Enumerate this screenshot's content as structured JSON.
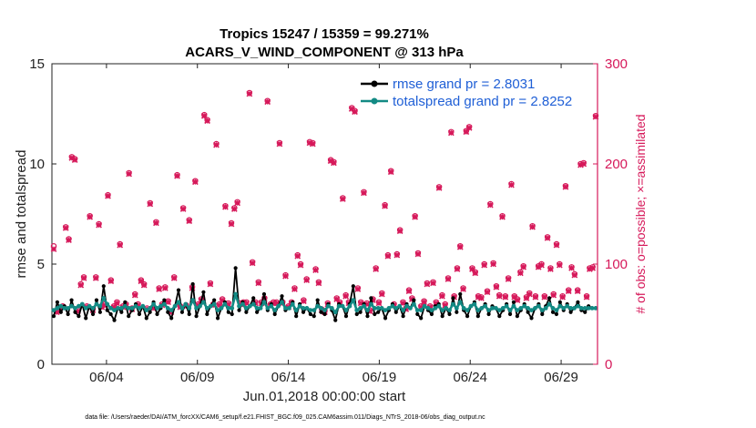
{
  "chart_data": {
    "type": "line",
    "title_line1": "Tropics 15247 / 15359 = 99.271%",
    "title_line2": "ACARS_V_WIND_COMPONENT @ 313 hPa",
    "xlabel": "Jun.01,2018 00:00:00 start",
    "ylabel_left": "rmse and totalspread",
    "ylabel_right": "# of obs: o=possible; ×=assimilated",
    "footer": "data file: /Users/raeder/DAI/ATM_forcXX/CAM6_setup/f.e21.FHIST_BGC.f09_025.CAM6assim.011/Diags_NTrS_2018-06/obs_diag_output.nc",
    "x_tick_labels": [
      "06/04",
      "06/09",
      "06/14",
      "06/19",
      "06/24",
      "06/29"
    ],
    "x_tick_days": [
      4,
      9,
      14,
      19,
      24,
      29
    ],
    "xlim_days": [
      1,
      31
    ],
    "ylim_left": [
      0,
      15
    ],
    "ylim_right": [
      0,
      300
    ],
    "y_ticks_left": [
      "0",
      "5",
      "10",
      "15"
    ],
    "y_ticks_right": [
      "0",
      "100",
      "200",
      "300"
    ],
    "colors": {
      "rmse": "#000000",
      "spread": "#138a84",
      "obs": "#d6195a",
      "legend_text": "#1f5fd6"
    },
    "series": [
      {
        "name": "rmse grand pr = 2.8031",
        "key": "rmse",
        "axis": "left",
        "values": [
          2.4,
          3.1,
          2.6,
          2.9,
          2.5,
          3.2,
          2.6,
          2.4,
          3.0,
          2.3,
          2.9,
          2.5,
          3.2,
          2.6,
          3.9,
          2.7,
          2.5,
          2.2,
          2.8,
          2.6,
          3.1,
          2.4,
          2.7,
          3.0,
          2.5,
          2.9,
          2.3,
          2.6,
          3.1,
          2.5,
          2.8,
          3.2,
          2.6,
          2.3,
          2.9,
          3.7,
          2.6,
          3.0,
          2.5,
          4.0,
          2.4,
          2.9,
          3.6,
          2.5,
          2.9,
          3.2,
          2.3,
          2.8,
          3.1,
          2.6,
          2.5,
          4.8,
          2.7,
          3.1,
          2.6,
          2.9,
          3.3,
          2.6,
          2.8,
          3.5,
          2.7,
          3.0,
          2.5,
          2.9,
          3.4,
          2.7,
          2.8,
          3.1,
          2.4,
          3.0,
          2.6,
          2.8,
          2.5,
          2.4,
          3.2,
          2.6,
          2.5,
          3.0,
          2.7,
          2.2,
          3.0,
          2.9,
          2.4,
          3.0,
          3.9,
          2.5,
          2.6,
          3.0,
          2.4,
          3.3,
          2.5,
          2.6,
          2.8,
          2.3,
          2.7,
          3.0,
          2.6,
          2.9,
          2.4,
          3.0,
          2.8,
          3.2,
          2.5,
          2.3,
          2.9,
          2.7,
          2.5,
          2.9,
          3.0,
          2.4,
          2.8,
          2.5,
          3.3,
          2.6,
          3.5,
          2.7,
          2.4,
          2.9,
          3.1,
          2.4,
          2.8,
          3.0,
          2.5,
          2.9,
          2.8,
          2.4,
          2.7,
          3.0,
          2.5,
          3.1,
          2.4,
          2.7,
          3.0,
          2.6,
          2.3,
          2.8,
          3.0,
          2.5,
          2.9,
          3.3,
          2.6,
          2.5,
          3.1,
          2.7,
          3.0,
          2.6,
          2.8,
          3.1,
          2.7,
          2.6,
          2.9,
          2.8,
          2.8
        ],
        "line": true,
        "marker": "dot"
      },
      {
        "name": "totalspread grand pr = 2.8252",
        "key": "spread",
        "axis": "left",
        "values": [
          2.7,
          2.8,
          2.9,
          2.8,
          2.8,
          2.9,
          2.8,
          2.9,
          3.0,
          2.8,
          2.9,
          2.8,
          3.0,
          2.9,
          3.3,
          3.0,
          2.8,
          2.7,
          2.8,
          2.8,
          2.9,
          2.8,
          2.8,
          2.9,
          2.8,
          2.9,
          2.7,
          2.8,
          3.0,
          2.8,
          2.9,
          3.0,
          2.8,
          2.7,
          2.9,
          3.1,
          2.8,
          3.0,
          2.8,
          3.2,
          2.8,
          2.9,
          3.1,
          2.8,
          2.9,
          3.0,
          2.7,
          2.8,
          3.0,
          2.8,
          2.8,
          3.5,
          2.9,
          3.0,
          2.8,
          2.9,
          3.0,
          2.8,
          2.8,
          3.1,
          2.8,
          2.9,
          2.7,
          2.9,
          3.1,
          2.8,
          2.8,
          3.0,
          2.7,
          2.9,
          2.8,
          2.8,
          2.7,
          2.7,
          2.9,
          2.8,
          2.7,
          2.9,
          2.8,
          2.6,
          2.9,
          2.9,
          2.7,
          2.9,
          3.2,
          2.7,
          2.8,
          2.9,
          2.7,
          3.0,
          2.8,
          2.8,
          2.8,
          2.7,
          2.8,
          2.9,
          2.8,
          2.9,
          2.7,
          2.9,
          2.8,
          3.0,
          2.7,
          2.7,
          2.9,
          2.8,
          2.7,
          2.8,
          2.9,
          2.7,
          2.8,
          2.7,
          3.0,
          2.8,
          3.1,
          2.8,
          2.7,
          2.9,
          3.0,
          2.7,
          2.8,
          2.9,
          2.7,
          2.8,
          2.8,
          2.7,
          2.8,
          2.9,
          2.7,
          2.9,
          2.7,
          2.8,
          2.9,
          2.8,
          2.7,
          2.8,
          2.9,
          2.7,
          2.8,
          3.0,
          2.8,
          2.7,
          2.9,
          2.8,
          2.9,
          2.8,
          2.8,
          2.9,
          2.8,
          2.8,
          2.8,
          2.8,
          2.8
        ],
        "line": true,
        "marker": "dot"
      },
      {
        "name": "# of obs possible",
        "key": "obs_possible",
        "axis": "right",
        "values": [
          118,
          53,
          55,
          58,
          137,
          125,
          207,
          205,
          54,
          80,
          87,
          58,
          148,
          55,
          87,
          140,
          58,
          60,
          169,
          84,
          58,
          62,
          120,
          58,
          60,
          191,
          56,
          70,
          60,
          84,
          80,
          56,
          161,
          57,
          142,
          76,
          60,
          77,
          63,
          53,
          87,
          189,
          58,
          156,
          59,
          144,
          77,
          183,
          60,
          65,
          249,
          244,
          81,
          60,
          220,
          60,
          65,
          158,
          61,
          141,
          156,
          162,
          61,
          62,
          62,
          271,
          102,
          62,
          82,
          62,
          66,
          263,
          60,
          62,
          62,
          221,
          62,
          89,
          58,
          62,
          76,
          109,
          100,
          64,
          85,
          222,
          221,
          95,
          82,
          55,
          53,
          61,
          204,
          202,
          66,
          62,
          166,
          69,
          62,
          256,
          253,
          76,
          62,
          172,
          61,
          54,
          65,
          96,
          62,
          71,
          159,
          109,
          193,
          60,
          110,
          134,
          62,
          56,
          74,
          66,
          148,
          111,
          58,
          63,
          81,
          58,
          82,
          62,
          177,
          69,
          60,
          86,
          232,
          68,
          96,
          118,
          76,
          233,
          237,
          96,
          92,
          68,
          67,
          100,
          73,
          160,
          101,
          78,
          69,
          148,
          68,
          86,
          180,
          68,
          65,
          92,
          98,
          67,
          71,
          138,
          68,
          98,
          100,
          68,
          127,
          96,
          70,
          120,
          100,
          68,
          178,
          74,
          97,
          90,
          74,
          200,
          201,
          68,
          96,
          97,
          248
        ]
      },
      {
        "name": "# of obs assimilated",
        "key": "obs_assim",
        "axis": "right",
        "values": [
          115,
          52,
          54,
          57,
          136,
          124,
          206,
          204,
          53,
          79,
          86,
          57,
          147,
          54,
          86,
          139,
          57,
          59,
          168,
          83,
          57,
          61,
          119,
          57,
          59,
          190,
          55,
          69,
          59,
          83,
          79,
          55,
          160,
          56,
          141,
          75,
          59,
          76,
          62,
          52,
          86,
          188,
          57,
          155,
          58,
          143,
          76,
          182,
          59,
          64,
          248,
          243,
          80,
          59,
          219,
          59,
          64,
          157,
          60,
          140,
          155,
          161,
          60,
          61,
          61,
          270,
          101,
          61,
          81,
          61,
          65,
          262,
          59,
          61,
          61,
          220,
          61,
          88,
          57,
          61,
          75,
          108,
          99,
          63,
          84,
          221,
          220,
          94,
          81,
          54,
          52,
          60,
          203,
          201,
          65,
          61,
          165,
          68,
          61,
          255,
          252,
          75,
          61,
          171,
          60,
          53,
          64,
          95,
          61,
          70,
          158,
          108,
          192,
          59,
          109,
          133,
          61,
          55,
          73,
          65,
          147,
          110,
          57,
          62,
          80,
          57,
          81,
          61,
          176,
          68,
          59,
          85,
          231,
          67,
          95,
          117,
          75,
          232,
          236,
          95,
          91,
          67,
          66,
          99,
          72,
          159,
          100,
          77,
          68,
          147,
          67,
          85,
          179,
          67,
          64,
          91,
          97,
          66,
          70,
          137,
          67,
          97,
          99,
          67,
          126,
          95,
          69,
          119,
          99,
          67,
          177,
          73,
          96,
          89,
          73,
          199,
          200,
          67,
          95,
          96,
          247
        ]
      }
    ]
  }
}
